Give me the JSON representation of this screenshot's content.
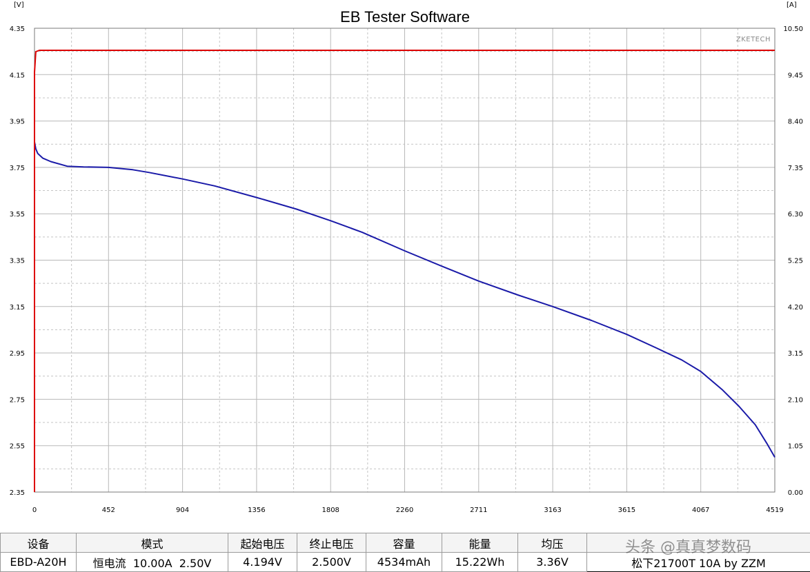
{
  "chart_data": {
    "type": "line",
    "title": "EB Tester Software",
    "brand": "ZKETECH",
    "y_left": {
      "unit": "[V]",
      "range": [
        2.35,
        4.35
      ],
      "ticks": [
        "4.35",
        "4.15",
        "3.95",
        "3.75",
        "3.55",
        "3.35",
        "3.15",
        "2.95",
        "2.75",
        "2.55",
        "2.35"
      ]
    },
    "y_right": {
      "unit": "[A]",
      "range": [
        0,
        10.5
      ],
      "ticks": [
        "10.50",
        "9.45",
        "8.40",
        "7.35",
        "6.30",
        "5.25",
        "4.20",
        "3.15",
        "2.10",
        "1.05",
        "0.00"
      ]
    },
    "x": {
      "range": [
        0,
        4519
      ],
      "ticks": [
        "0",
        "452",
        "904",
        "1356",
        "1808",
        "2260",
        "2711",
        "3163",
        "3615",
        "4067",
        "4519"
      ]
    },
    "grid": true,
    "series": [
      {
        "color": "#1a1aa8",
        "axis": "left",
        "points": [
          [
            0,
            3.86
          ],
          [
            8,
            3.83
          ],
          [
            20,
            3.81
          ],
          [
            50,
            3.79
          ],
          [
            100,
            3.775
          ],
          [
            200,
            3.755
          ],
          [
            300,
            3.752
          ],
          [
            452,
            3.75
          ],
          [
            600,
            3.74
          ],
          [
            700,
            3.728
          ],
          [
            904,
            3.7
          ],
          [
            1100,
            3.67
          ],
          [
            1356,
            3.62
          ],
          [
            1600,
            3.57
          ],
          [
            1808,
            3.52
          ],
          [
            2000,
            3.47
          ],
          [
            2260,
            3.39
          ],
          [
            2500,
            3.32
          ],
          [
            2711,
            3.26
          ],
          [
            2950,
            3.2
          ],
          [
            3163,
            3.15
          ],
          [
            3400,
            3.09
          ],
          [
            3615,
            3.03
          ],
          [
            3800,
            2.97
          ],
          [
            3950,
            2.92
          ],
          [
            4067,
            2.87
          ],
          [
            4200,
            2.79
          ],
          [
            4300,
            2.72
          ],
          [
            4400,
            2.64
          ],
          [
            4470,
            2.56
          ],
          [
            4519,
            2.5
          ]
        ]
      },
      {
        "color": "#dd0000",
        "axis": "right",
        "points": [
          [
            0,
            0.0
          ],
          [
            0,
            9.5
          ],
          [
            8,
            9.97
          ],
          [
            30,
            10.0
          ],
          [
            4519,
            10.0
          ]
        ]
      }
    ]
  },
  "summary": {
    "headers": [
      "设备",
      "模式",
      "起始电压",
      "终止电压",
      "容量",
      "能量",
      "均压",
      ""
    ],
    "values": [
      "EBD-A20H",
      "恒电流  10.00A  2.50V",
      "4.194V",
      "2.500V",
      "4534mAh",
      "15.22Wh",
      "3.36V",
      "松下21700T 10A by ZZM"
    ]
  },
  "watermark": "头条 @真真梦数码"
}
